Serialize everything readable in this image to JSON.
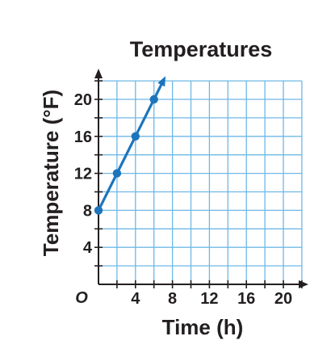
{
  "chart_data": {
    "type": "line",
    "title": "Temperatures",
    "xlabel": "Time (h)",
    "ylabel": "Temperature (°F)",
    "origin_label": "O",
    "xlim": [
      0,
      22
    ],
    "ylim": [
      0,
      22
    ],
    "grid": true,
    "x_ticks": [
      4,
      8,
      12,
      16,
      20
    ],
    "y_ticks": [
      4,
      8,
      12,
      16,
      20
    ],
    "series": [
      {
        "x": [
          0,
          2,
          4,
          6
        ],
        "y": [
          8,
          12,
          16,
          20
        ],
        "continues_past_last_point": true,
        "color": "#1c75bc"
      }
    ],
    "colors": {
      "line": "#1c75bc",
      "grid": "#6fb8e6",
      "axis": "#231f20",
      "text": "#231f20"
    }
  }
}
